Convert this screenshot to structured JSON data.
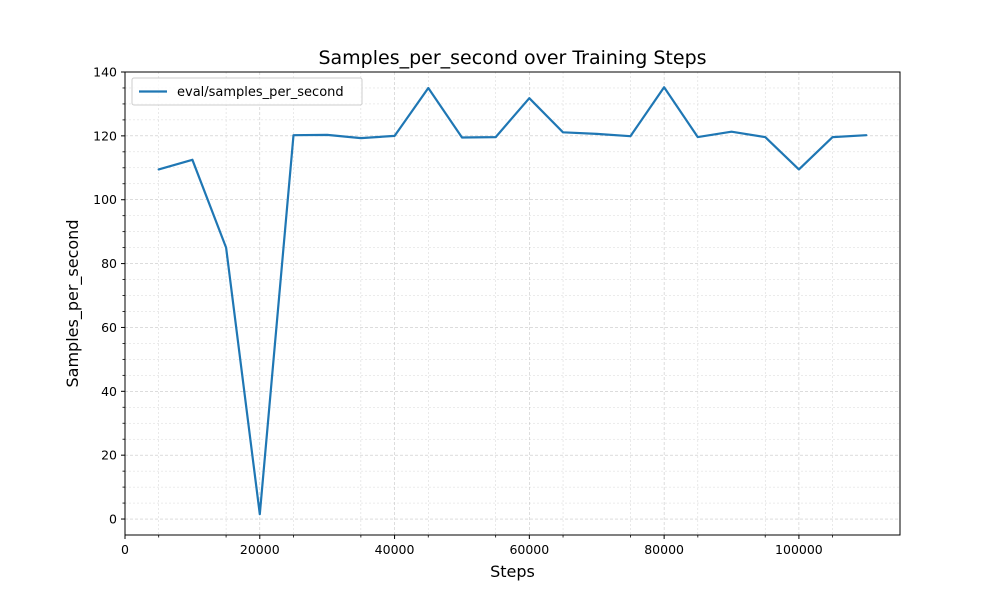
{
  "chart_data": {
    "type": "line",
    "title": "Samples_per_second over Training Steps",
    "xlabel": "Steps",
    "ylabel": "Samples_per_second",
    "xlim": [
      0,
      115000
    ],
    "ylim": [
      -5,
      140
    ],
    "x_ticks": [
      0,
      20000,
      40000,
      60000,
      80000,
      100000
    ],
    "x_tick_labels": [
      "0",
      "20000",
      "40000",
      "60000",
      "80000",
      "100000"
    ],
    "y_ticks": [
      0,
      20,
      40,
      60,
      80,
      100,
      120,
      140
    ],
    "y_tick_labels": [
      "0",
      "20",
      "40",
      "60",
      "80",
      "100",
      "120",
      "140"
    ],
    "grid": true,
    "legend_position": "upper-left",
    "colors": {
      "series": "#1f77b4",
      "grid": "#b0b0b0"
    },
    "series": [
      {
        "name": "eval/samples_per_second",
        "x": [
          5000,
          10000,
          15000,
          20000,
          25000,
          30000,
          35000,
          40000,
          45000,
          50000,
          55000,
          60000,
          65000,
          70000,
          75000,
          80000,
          85000,
          90000,
          95000,
          100000,
          105000,
          110000
        ],
        "values": [
          109.5,
          112.5,
          85.0,
          1.5,
          120.2,
          120.3,
          119.3,
          120.0,
          135.0,
          119.5,
          119.6,
          131.8,
          121.1,
          120.6,
          119.9,
          135.2,
          119.6,
          121.3,
          119.6,
          109.5,
          119.6,
          120.2
        ]
      }
    ]
  }
}
